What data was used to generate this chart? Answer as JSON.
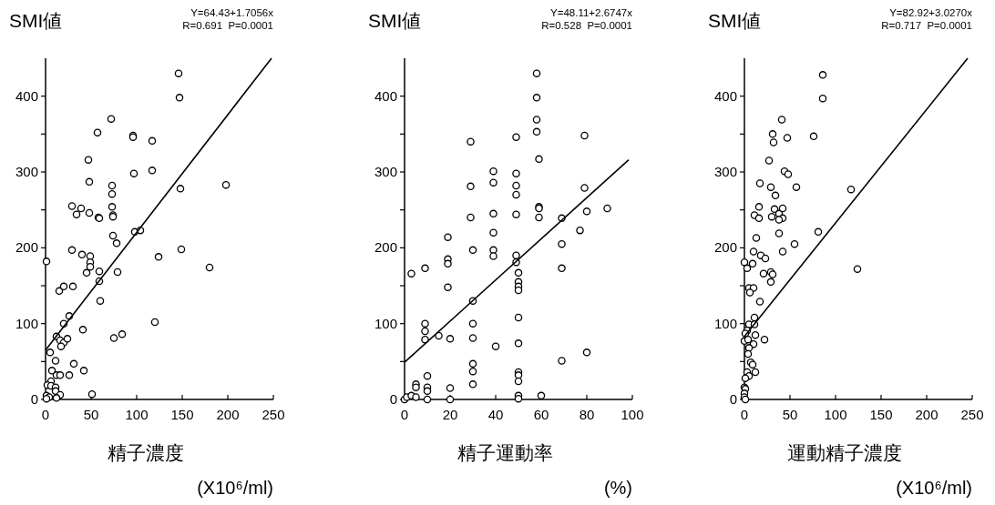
{
  "chart_data": [
    {
      "type": "scatter",
      "ylabel": "SMI値",
      "xlabel": "精子濃度\n(X10⁶/ml)",
      "annotations": [
        "Y=64.43+1.7056x",
        "R=0.691  P=0.0001"
      ],
      "xlim": [
        0,
        250
      ],
      "ylim": [
        0,
        450
      ],
      "xticks": [
        0,
        50,
        100,
        150,
        200,
        250
      ],
      "yticks": [
        0,
        {
          "value": 50,
          "label": null
        },
        100,
        {
          "value": 150,
          "label": null
        },
        200,
        {
          "value": 250,
          "label": null
        },
        300,
        {
          "value": 350,
          "label": null
        },
        400
      ],
      "series": [
        {
          "type": "scatter",
          "marker": "circle",
          "color": "#000000",
          "x": [
            146,
            147,
            72,
            57,
            96,
            96,
            117,
            47,
            117,
            97,
            48,
            73,
            198,
            148,
            73,
            29,
            39,
            34,
            48,
            73,
            74,
            74,
            58,
            59,
            74,
            78,
            98,
            104,
            29,
            40,
            49,
            49,
            49,
            45,
            59,
            79,
            59,
            60,
            149,
            124,
            180,
            1,
            15,
            20,
            30,
            26,
            20,
            41,
            120,
            75,
            84,
            12,
            16,
            20,
            24,
            17,
            5,
            11,
            31,
            7,
            42,
            26,
            12,
            16,
            6,
            2,
            6,
            11,
            11,
            16,
            1,
            4,
            12,
            1,
            51
          ],
          "values": [
            430,
            398,
            370,
            352,
            348,
            346,
            341,
            316,
            302,
            298,
            287,
            282,
            283,
            278,
            271,
            255,
            252,
            244,
            246,
            254,
            243,
            241,
            240,
            239,
            216,
            206,
            221,
            223,
            197,
            191,
            189,
            181,
            175,
            167,
            169,
            168,
            156,
            130,
            198,
            188,
            174,
            182,
            143,
            149,
            149,
            110,
            100,
            92,
            102,
            81,
            86,
            83,
            78,
            75,
            80,
            70,
            62,
            51,
            47,
            38,
            38,
            32,
            32,
            32,
            24,
            19,
            18,
            16,
            11,
            6,
            5,
            3,
            2,
            1,
            7
          ]
        },
        {
          "type": "line",
          "marker": "none",
          "color": "#000000",
          "x": [
            0,
            248
          ],
          "values": [
            65,
            450
          ]
        }
      ]
    },
    {
      "type": "scatter",
      "ylabel": "SMI値",
      "xlabel": "精子運動率\n(%)",
      "annotations": [
        "Y=48.11+2.6747x",
        "R=0.528  P=0.0001"
      ],
      "xlim": [
        0,
        100
      ],
      "ylim": [
        0,
        450
      ],
      "xticks": [
        0,
        20,
        40,
        60,
        80,
        100
      ],
      "yticks": [
        0,
        {
          "value": 50,
          "label": null
        },
        100,
        {
          "value": 150,
          "label": null
        },
        200,
        {
          "value": 250,
          "label": null
        },
        300,
        {
          "value": 350,
          "label": null
        },
        400
      ],
      "series": [
        {
          "type": "scatter",
          "marker": "circle",
          "color": "#000000",
          "x": [
            58,
            58,
            58,
            58,
            79,
            29,
            49,
            59,
            39,
            39,
            29,
            49,
            49,
            49,
            49,
            39,
            29,
            59,
            59,
            59,
            79,
            80,
            89,
            77,
            69,
            69,
            69,
            39,
            39,
            39,
            30,
            19,
            19,
            19,
            19,
            3,
            9,
            49,
            49,
            50,
            50,
            50,
            50,
            30,
            50,
            50,
            40,
            30,
            30,
            9,
            9,
            9,
            15,
            20,
            69,
            80,
            30,
            30,
            30,
            50,
            50,
            50,
            10,
            5,
            5,
            10,
            10,
            20,
            50,
            50,
            60,
            0,
            1,
            3,
            5,
            10,
            20
          ],
          "values": [
            430,
            398,
            369,
            353,
            348,
            340,
            346,
            317,
            301,
            286,
            281,
            298,
            282,
            270,
            244,
            245,
            240,
            254,
            252,
            240,
            279,
            248,
            252,
            223,
            239,
            205,
            173,
            220,
            197,
            189,
            197,
            214,
            185,
            179,
            148,
            166,
            173,
            190,
            181,
            167,
            155,
            149,
            144,
            130,
            108,
            74,
            70,
            100,
            81,
            100,
            90,
            79,
            84,
            80,
            51,
            62,
            47,
            37,
            20,
            36,
            32,
            24,
            31,
            20,
            16,
            16,
            11,
            15,
            5,
            1,
            5,
            0,
            3,
            5,
            3,
            0,
            0
          ]
        },
        {
          "type": "line",
          "marker": "none",
          "color": "#000000",
          "x": [
            0,
            98.4
          ],
          "values": [
            49,
            316
          ]
        }
      ]
    },
    {
      "type": "scatter",
      "ylabel": "SMI値",
      "xlabel": "運動精子濃度\n(X10⁶/ml)",
      "annotations": [
        "Y=82.92+3.0270x",
        "R=0.717  P=0.0001"
      ],
      "xlim": [
        0,
        250
      ],
      "ylim": [
        0,
        450
      ],
      "xticks": [
        0,
        50,
        100,
        150,
        200,
        250
      ],
      "yticks": [
        0,
        {
          "value": 50,
          "label": null
        },
        100,
        {
          "value": 150,
          "label": null
        },
        200,
        {
          "value": 250,
          "label": null
        },
        300,
        {
          "value": 350,
          "label": null
        },
        400
      ],
      "series": [
        {
          "type": "scatter",
          "marker": "circle",
          "color": "#000000",
          "x": [
            86,
            86,
            41,
            31,
            32,
            47,
            76,
            27,
            44,
            48,
            57,
            117,
            17,
            29,
            34,
            16,
            11,
            16,
            33,
            38,
            42,
            42,
            38,
            30,
            38,
            81,
            13,
            55,
            42,
            10,
            18,
            23,
            0,
            3,
            9,
            124,
            21,
            29,
            31,
            29,
            5,
            10,
            6,
            17,
            11,
            5,
            11,
            3,
            1,
            12,
            0,
            4,
            22,
            10,
            5,
            4,
            7,
            9,
            3,
            12,
            5,
            1,
            0,
            1,
            0,
            0,
            1
          ],
          "values": [
            428,
            397,
            369,
            350,
            339,
            345,
            347,
            315,
            301,
            297,
            280,
            277,
            285,
            280,
            269,
            254,
            243,
            239,
            251,
            245,
            252,
            239,
            237,
            241,
            219,
            221,
            213,
            205,
            195,
            195,
            190,
            186,
            181,
            173,
            179,
            172,
            166,
            168,
            165,
            155,
            147,
            147,
            141,
            129,
            108,
            99,
            99,
            91,
            87,
            85,
            77,
            79,
            79,
            73,
            68,
            60,
            49,
            46,
            36,
            36,
            31,
            28,
            16,
            14,
            8,
            3,
            0
          ]
        },
        {
          "type": "line",
          "marker": "none",
          "color": "#000000",
          "x": [
            0,
            245
          ],
          "values": [
            83,
            450
          ]
        }
      ]
    }
  ]
}
